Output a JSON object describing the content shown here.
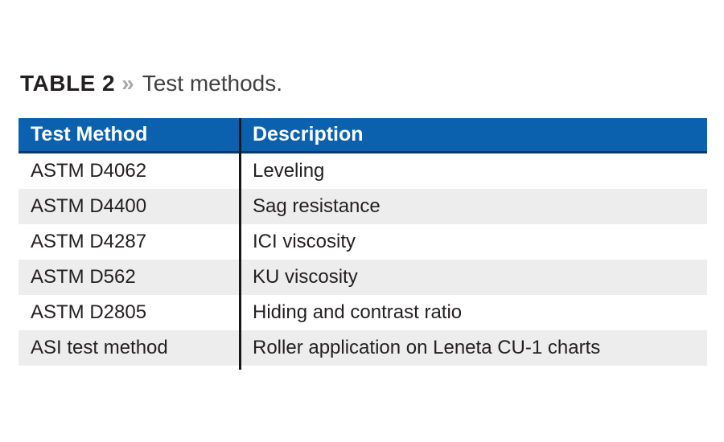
{
  "title": {
    "label": "TABLE 2",
    "separator": "»",
    "caption": "Test methods."
  },
  "table": {
    "accent_color": "#0b61ae",
    "header_border_color": "#0a3a6b",
    "alt_row_color": "#ededed",
    "divider_color": "#161616",
    "text_color": "#231f20",
    "columns": [
      "Test Method",
      "Description"
    ],
    "rows": [
      {
        "method": "ASTM D4062",
        "description": "Leveling"
      },
      {
        "method": "ASTM D4400",
        "description": "Sag resistance"
      },
      {
        "method": "ASTM D4287",
        "description": "ICI viscosity"
      },
      {
        "method": "ASTM D562",
        "description": "KU viscosity"
      },
      {
        "method": "ASTM D2805",
        "description": "Hiding and contrast ratio"
      },
      {
        "method": "ASI test method",
        "description": "Roller application on Leneta CU-1 charts"
      }
    ]
  }
}
